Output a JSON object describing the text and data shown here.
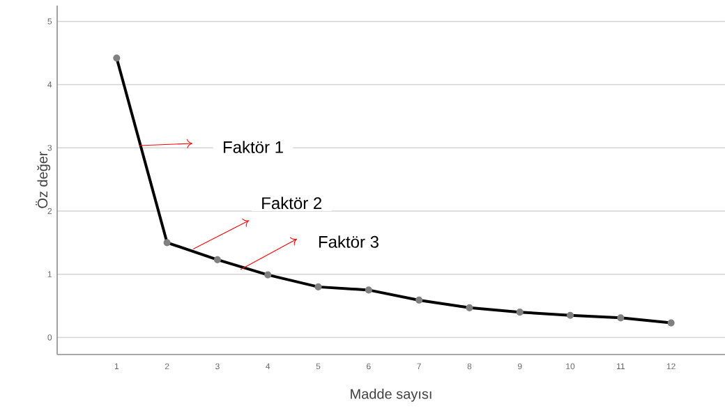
{
  "chart_data": {
    "type": "line",
    "xlabel": "Madde sayısı",
    "ylabel": "Öz değer",
    "x": [
      1,
      2,
      3,
      4,
      5,
      6,
      7,
      8,
      9,
      10,
      11,
      12
    ],
    "series": [
      {
        "color": "#000000",
        "values": [
          4.42,
          1.5,
          1.23,
          0.99,
          0.8,
          0.75,
          0.59,
          0.47,
          0.4,
          0.35,
          0.31,
          0.23
        ]
      }
    ],
    "xlim": [
      -0.18,
      13.07
    ],
    "ylim": [
      -0.27,
      5.25
    ],
    "xticks": [
      1,
      2,
      3,
      4,
      5,
      6,
      7,
      8,
      9,
      10,
      11,
      12
    ],
    "yticks": [
      0,
      1,
      2,
      3,
      4,
      5
    ],
    "grid": "y",
    "marker": "circle",
    "line_style": "solid",
    "annotations": [
      "Faktör 1",
      {
        "text": "Faktör 2",
        "x": 2.52,
        "y": 1.4
      },
      "Faktör 3"
    ]
  }
}
